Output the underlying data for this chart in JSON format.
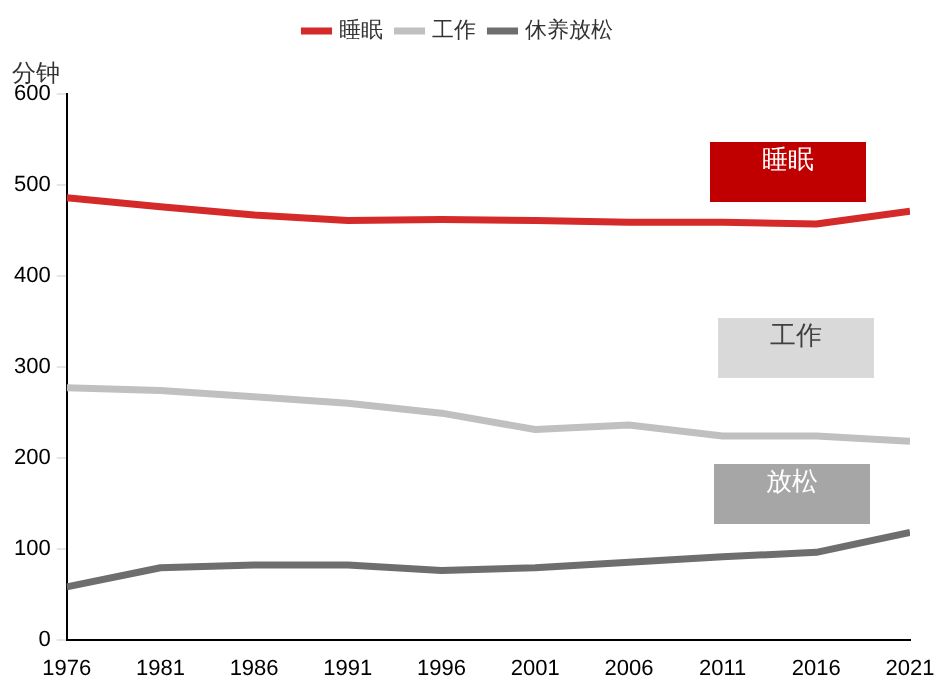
{
  "chart_data": {
    "type": "line",
    "ylabel": "分钟",
    "x": [
      1976,
      1981,
      1986,
      1991,
      1996,
      2001,
      2006,
      2011,
      2016,
      2021
    ],
    "series": [
      {
        "name": "睡眠",
        "color": "#d42a2a",
        "values": [
          486,
          476,
          467,
          461,
          462,
          461,
          459,
          459,
          457,
          471
        ]
      },
      {
        "name": "工作",
        "color": "#c0c0c0",
        "values": [
          277,
          274,
          267,
          260,
          249,
          231,
          236,
          224,
          224,
          218
        ]
      },
      {
        "name": "休养放松",
        "color": "#6e6e6e",
        "values": [
          58,
          79,
          82,
          82,
          76,
          79,
          85,
          91,
          96,
          118
        ]
      }
    ],
    "annotations": [
      "睡眠",
      "工作",
      "放松"
    ],
    "xlim": [
      1976,
      2021
    ],
    "xticks": [
      1976,
      1981,
      1986,
      1991,
      1996,
      2001,
      2006,
      2011,
      2016,
      2021
    ],
    "ylim": [
      0,
      600
    ],
    "yticks": [
      0,
      100,
      200,
      300,
      400,
      500,
      600
    ],
    "grid": false,
    "legend": "top",
    "marker": "none",
    "line_style": "solid"
  }
}
